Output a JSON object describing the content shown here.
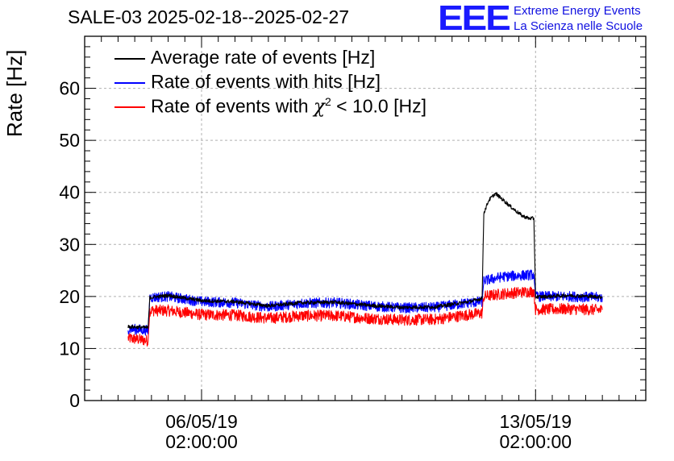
{
  "header": {
    "title": "SALE-03 2025-02-18--2025-02-27",
    "logo_text": "EEE",
    "logo_line1": "Extreme Energy Events",
    "logo_line2": "La Scienza nelle Scuole",
    "logo_color": "#1a1aff"
  },
  "legend": {
    "items": [
      {
        "label": "Average rate of events [Hz]",
        "color": "#000000"
      },
      {
        "label": "Rate of events with hits [Hz]",
        "color": "#0000ff"
      },
      {
        "label_prefix": "Rate of events with ",
        "chi": "χ",
        "sup": "2",
        "label_suffix": " < 10.0 [Hz]",
        "color": "#ff0000"
      }
    ]
  },
  "chart_data": {
    "type": "line",
    "title": "SALE-03 2025-02-18--2025-02-27",
    "ylabel": "Rate [Hz]",
    "xlabel": "",
    "ylim": [
      0,
      70
    ],
    "yticks": [
      0,
      10,
      20,
      30,
      40,
      50,
      60
    ],
    "xlim_days": [
      -3.5,
      13.3
    ],
    "xticks": [
      {
        "day": 0,
        "label_date": "06/05/19",
        "label_time": "02:00:00"
      },
      {
        "day": 10,
        "label_date": "13/05/19",
        "label_time": "02:00:00"
      }
    ],
    "grid": true,
    "legend_position": "top-left",
    "series": [
      {
        "name": "Average rate of events [Hz]",
        "color": "#000000",
        "points": [
          [
            -2.2,
            14.2
          ],
          [
            -1.6,
            14.0
          ],
          [
            -1.55,
            19.8
          ],
          [
            -1.0,
            20.2
          ],
          [
            0,
            19.2
          ],
          [
            1.0,
            19.0
          ],
          [
            2.0,
            18.2
          ],
          [
            3.0,
            18.8
          ],
          [
            4.0,
            18.9
          ],
          [
            5.0,
            18.3
          ],
          [
            6.0,
            17.9
          ],
          [
            7.0,
            18.0
          ],
          [
            8.0,
            19.0
          ],
          [
            8.4,
            19.6
          ],
          [
            8.45,
            36.0
          ],
          [
            8.6,
            38.5
          ],
          [
            8.8,
            39.8
          ],
          [
            9.0,
            38.7
          ],
          [
            9.3,
            37.0
          ],
          [
            9.6,
            35.5
          ],
          [
            9.8,
            35.0
          ],
          [
            9.95,
            35.0
          ],
          [
            10.0,
            19.9
          ],
          [
            11.0,
            20.2
          ],
          [
            12.0,
            19.9
          ],
          [
            12.0,
            19.9
          ]
        ]
      },
      {
        "name": "Rate of events with hits [Hz]",
        "color": "#0000ff",
        "points": [
          [
            -2.2,
            13.8
          ],
          [
            -1.6,
            13.5
          ],
          [
            -1.55,
            19.8
          ],
          [
            -1.0,
            20.0
          ],
          [
            0,
            19.0
          ],
          [
            1.0,
            18.8
          ],
          [
            2.0,
            18.0
          ],
          [
            3.0,
            18.7
          ],
          [
            4.0,
            18.8
          ],
          [
            5.0,
            18.2
          ],
          [
            6.0,
            17.8
          ],
          [
            7.0,
            17.9
          ],
          [
            8.0,
            18.8
          ],
          [
            8.4,
            19.0
          ],
          [
            8.45,
            23.0
          ],
          [
            9.0,
            23.8
          ],
          [
            9.95,
            24.2
          ],
          [
            10.0,
            20.0
          ],
          [
            11.0,
            20.0
          ],
          [
            12.0,
            19.8
          ]
        ]
      },
      {
        "name": "Rate of events with χ2 < 10.0 [Hz]",
        "color": "#ff0000",
        "points": [
          [
            -2.2,
            12.0
          ],
          [
            -1.6,
            11.5
          ],
          [
            -1.55,
            17.3
          ],
          [
            -1.0,
            17.3
          ],
          [
            0,
            16.5
          ],
          [
            1.0,
            16.4
          ],
          [
            2.0,
            15.8
          ],
          [
            3.0,
            16.3
          ],
          [
            4.0,
            16.3
          ],
          [
            5.0,
            15.8
          ],
          [
            6.0,
            15.5
          ],
          [
            7.0,
            15.6
          ],
          [
            8.0,
            16.5
          ],
          [
            8.4,
            16.8
          ],
          [
            8.45,
            20.0
          ],
          [
            9.0,
            20.5
          ],
          [
            9.95,
            21.0
          ],
          [
            10.0,
            17.5
          ],
          [
            11.0,
            17.6
          ],
          [
            12.0,
            17.4
          ]
        ]
      }
    ]
  }
}
